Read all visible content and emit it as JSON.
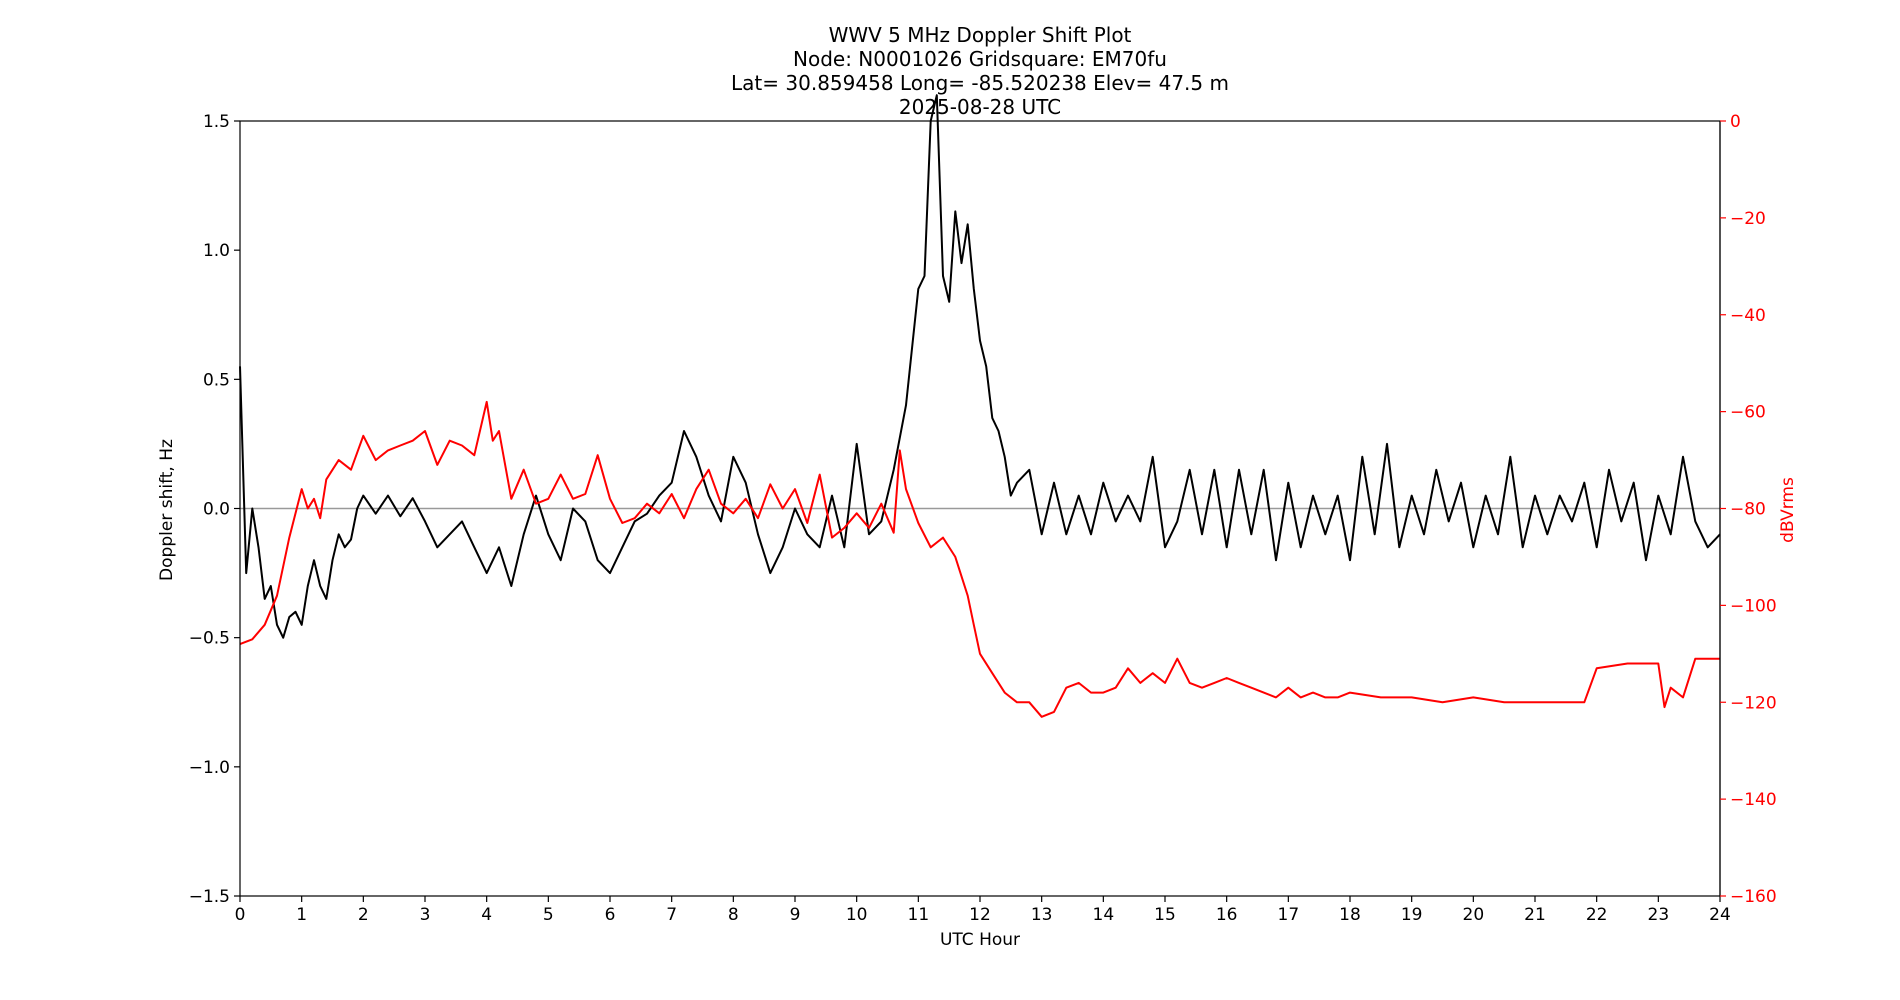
{
  "title": {
    "line1": "WWV 5 MHz Doppler Shift Plot",
    "line2": "Node:  N0001026     Gridsquare:  EM70fu",
    "line3": "Lat= 30.859458    Long= -85.520238    Elev= 47.5 m",
    "line4": "2025-08-28  UTC"
  },
  "chart_data": {
    "type": "line",
    "xlabel": "UTC Hour",
    "ylabel": "Doppler shift, Hz",
    "y2label": "dBVrms",
    "xlim": [
      0,
      24
    ],
    "ylim": [
      -1.5,
      1.5
    ],
    "y2lim": [
      -160,
      0
    ],
    "xticks": [
      "0",
      "1",
      "2",
      "3",
      "4",
      "5",
      "6",
      "7",
      "8",
      "9",
      "10",
      "11",
      "12",
      "13",
      "14",
      "15",
      "16",
      "17",
      "18",
      "19",
      "20",
      "21",
      "22",
      "23",
      "24"
    ],
    "yticks": [
      "−1.5",
      "−1.0",
      "−0.5",
      "0.0",
      "0.5",
      "1.0",
      "1.5"
    ],
    "y2ticks": [
      "−160",
      "−140",
      "−120",
      "−100",
      "−80",
      "−60",
      "−40",
      "−20",
      "0"
    ],
    "grid": false,
    "zero_line": true,
    "colors": {
      "doppler": "#000000",
      "power": "#ff0000",
      "zero_line": "#999999",
      "right_axis": "#ff0000"
    },
    "series": [
      {
        "axis": "left",
        "x": [
          0,
          0.1,
          0.2,
          0.3,
          0.4,
          0.5,
          0.6,
          0.7,
          0.8,
          0.9,
          1.0,
          1.1,
          1.2,
          1.3,
          1.4,
          1.5,
          1.6,
          1.7,
          1.8,
          1.9,
          2.0,
          2.2,
          2.4,
          2.6,
          2.8,
          3.0,
          3.2,
          3.4,
          3.6,
          3.8,
          4.0,
          4.2,
          4.4,
          4.6,
          4.8,
          5.0,
          5.2,
          5.4,
          5.6,
          5.8,
          6.0,
          6.2,
          6.4,
          6.6,
          6.8,
          7.0,
          7.2,
          7.4,
          7.6,
          7.8,
          8.0,
          8.2,
          8.4,
          8.6,
          8.8,
          9.0,
          9.2,
          9.4,
          9.6,
          9.8,
          10.0,
          10.2,
          10.4,
          10.6,
          10.8,
          11.0,
          11.1,
          11.2,
          11.3,
          11.4,
          11.5,
          11.6,
          11.7,
          11.8,
          11.9,
          12.0,
          12.1,
          12.2,
          12.3,
          12.4,
          12.5,
          12.6,
          12.8,
          13.0,
          13.2,
          13.4,
          13.6,
          13.8,
          14.0,
          14.2,
          14.4,
          14.6,
          14.8,
          15.0,
          15.2,
          15.4,
          15.6,
          15.8,
          16.0,
          16.2,
          16.4,
          16.6,
          16.8,
          17.0,
          17.2,
          17.4,
          17.6,
          17.8,
          18.0,
          18.2,
          18.4,
          18.6,
          18.8,
          19.0,
          19.2,
          19.4,
          19.6,
          19.8,
          20.0,
          20.2,
          20.4,
          20.6,
          20.8,
          21.0,
          21.2,
          21.4,
          21.6,
          21.8,
          22.0,
          22.2,
          22.4,
          22.6,
          22.8,
          23.0,
          23.2,
          23.4,
          23.6,
          23.8,
          24.0
        ],
        "y": [
          0.55,
          -0.25,
          0.0,
          -0.15,
          -0.35,
          -0.3,
          -0.45,
          -0.5,
          -0.42,
          -0.4,
          -0.45,
          -0.3,
          -0.2,
          -0.3,
          -0.35,
          -0.2,
          -0.1,
          -0.15,
          -0.12,
          0.0,
          0.05,
          -0.02,
          0.05,
          -0.03,
          0.04,
          -0.05,
          -0.15,
          -0.1,
          -0.05,
          -0.15,
          -0.25,
          -0.15,
          -0.3,
          -0.1,
          0.05,
          -0.1,
          -0.2,
          0.0,
          -0.05,
          -0.2,
          -0.25,
          -0.15,
          -0.05,
          -0.02,
          0.05,
          0.1,
          0.3,
          0.2,
          0.05,
          -0.05,
          0.2,
          0.1,
          -0.1,
          -0.25,
          -0.15,
          0.0,
          -0.1,
          -0.15,
          0.05,
          -0.15,
          0.25,
          -0.1,
          -0.05,
          0.15,
          0.4,
          0.85,
          0.9,
          1.5,
          1.6,
          0.9,
          0.8,
          1.15,
          0.95,
          1.1,
          0.85,
          0.65,
          0.55,
          0.35,
          0.3,
          0.2,
          0.05,
          0.1,
          0.15,
          -0.1,
          0.1,
          -0.1,
          0.05,
          -0.1,
          0.1,
          -0.05,
          0.05,
          -0.05,
          0.2,
          -0.15,
          -0.05,
          0.15,
          -0.1,
          0.15,
          -0.15,
          0.15,
          -0.1,
          0.15,
          -0.2,
          0.1,
          -0.15,
          0.05,
          -0.1,
          0.05,
          -0.2,
          0.2,
          -0.1,
          0.25,
          -0.15,
          0.05,
          -0.1,
          0.15,
          -0.05,
          0.1,
          -0.15,
          0.05,
          -0.1,
          0.2,
          -0.15,
          0.05,
          -0.1,
          0.05,
          -0.05,
          0.1,
          -0.15,
          0.15,
          -0.05,
          0.1,
          -0.2,
          0.05,
          -0.1,
          0.2,
          -0.05,
          -0.15,
          -0.1
        ]
      },
      {
        "axis": "right",
        "x": [
          0,
          0.2,
          0.4,
          0.6,
          0.8,
          1.0,
          1.1,
          1.2,
          1.3,
          1.4,
          1.6,
          1.8,
          2.0,
          2.2,
          2.4,
          2.6,
          2.8,
          3.0,
          3.2,
          3.4,
          3.6,
          3.8,
          4.0,
          4.1,
          4.2,
          4.4,
          4.6,
          4.8,
          5.0,
          5.2,
          5.4,
          5.6,
          5.8,
          6.0,
          6.2,
          6.4,
          6.6,
          6.8,
          7.0,
          7.2,
          7.4,
          7.6,
          7.8,
          8.0,
          8.2,
          8.4,
          8.6,
          8.8,
          9.0,
          9.2,
          9.4,
          9.6,
          9.8,
          10.0,
          10.2,
          10.4,
          10.6,
          10.7,
          10.8,
          11.0,
          11.2,
          11.4,
          11.6,
          11.8,
          11.9,
          12.0,
          12.2,
          12.4,
          12.6,
          12.8,
          13.0,
          13.2,
          13.4,
          13.6,
          13.8,
          14.0,
          14.2,
          14.4,
          14.6,
          14.8,
          15.0,
          15.2,
          15.4,
          15.6,
          15.8,
          16.0,
          16.2,
          16.4,
          16.6,
          16.8,
          17.0,
          17.2,
          17.4,
          17.6,
          17.8,
          18.0,
          18.5,
          19.0,
          19.5,
          20.0,
          20.5,
          21.0,
          21.5,
          21.8,
          22.0,
          22.5,
          23.0,
          23.1,
          23.2,
          23.4,
          23.6,
          23.8,
          24.0
        ],
        "y": [
          -108,
          -107,
          -104,
          -98,
          -86,
          -76,
          -80,
          -78,
          -82,
          -74,
          -70,
          -72,
          -65,
          -70,
          -68,
          -67,
          -66,
          -64,
          -71,
          -66,
          -67,
          -69,
          -58,
          -66,
          -64,
          -78,
          -72,
          -79,
          -78,
          -73,
          -78,
          -77,
          -69,
          -78,
          -83,
          -82,
          -79,
          -81,
          -77,
          -82,
          -76,
          -72,
          -79,
          -81,
          -78,
          -82,
          -75,
          -80,
          -76,
          -83,
          -73,
          -86,
          -84,
          -81,
          -84,
          -79,
          -85,
          -68,
          -76,
          -83,
          -88,
          -86,
          -90,
          -98,
          -104,
          -110,
          -114,
          -118,
          -120,
          -120,
          -123,
          -122,
          -117,
          -116,
          -118,
          -118,
          -117,
          -113,
          -116,
          -114,
          -116,
          -111,
          -116,
          -117,
          -116,
          -115,
          -116,
          -117,
          -118,
          -119,
          -117,
          -119,
          -118,
          -119,
          -119,
          -118,
          -119,
          -119,
          -120,
          -119,
          -120,
          -120,
          -120,
          -120,
          -113,
          -112,
          -112,
          -121,
          -117,
          -119,
          -111,
          -111,
          -111
        ]
      }
    ]
  }
}
